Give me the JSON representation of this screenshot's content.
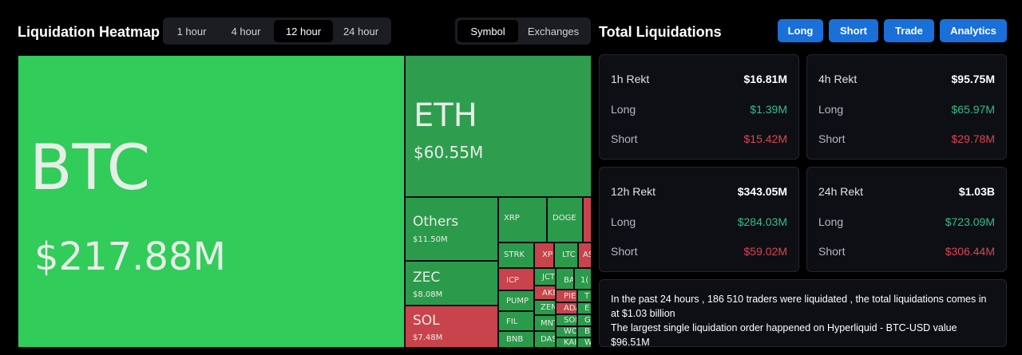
{
  "heatmap": {
    "title": "Liquidation Heatmap",
    "time_options": [
      "1 hour",
      "4 hour",
      "12 hour",
      "24 hour"
    ],
    "time_selected": "12 hour",
    "view_options": [
      "Symbol",
      "Exchanges"
    ],
    "view_selected": "Symbol",
    "tiles": {
      "btc": {
        "symbol": "BTC",
        "value": "$217.88M"
      },
      "eth": {
        "symbol": "ETH",
        "value": "$60.55M"
      },
      "others": {
        "symbol": "Others",
        "value": "$11.50M"
      },
      "zec": {
        "symbol": "ZEC",
        "value": "$8.08M"
      },
      "sol": {
        "symbol": "SOL",
        "value": "$7.48M"
      },
      "xrp": "XRP",
      "doge": "DOGE",
      "strk": "STRK",
      "xpl": "XPL",
      "ltc": "LTC",
      "aster": "AS",
      "icp": "ICP",
      "jct": "JCT",
      "ba": "BA",
      "one": "1(",
      "pump": "PUMP",
      "ake": "AKE",
      "pie": "PIE",
      "t": "T",
      "zen": "ZEN",
      "ada": "ADA",
      "e": "E",
      "fil": "FIL",
      "sol2": "SOL",
      "g": "G",
      "mnt": "MNT",
      "wc": "WC",
      "b": "B",
      "bnb": "BNB",
      "das": "DAS",
      "kai": "KAI",
      "w": "W"
    }
  },
  "total": {
    "title": "Total Liquidations",
    "buttons": {
      "long": "Long",
      "short": "Short",
      "trade": "Trade",
      "analytics": "Analytics"
    },
    "long_label": "Long",
    "short_label": "Short",
    "cards": [
      {
        "label": "1h Rekt",
        "total": "$16.81M",
        "long": "$1.39M",
        "short": "$15.42M"
      },
      {
        "label": "4h Rekt",
        "total": "$95.75M",
        "long": "$65.97M",
        "short": "$29.78M"
      },
      {
        "label": "12h Rekt",
        "total": "$343.05M",
        "long": "$284.03M",
        "short": "$59.02M"
      },
      {
        "label": "24h Rekt",
        "total": "$1.03B",
        "long": "$723.09M",
        "short": "$306.44M"
      }
    ],
    "summary_line1": "In the past 24 hours , 186 510 traders were liquidated , the total liquidations comes in at $1.03 billion",
    "summary_line2": "The largest single liquidation order happened on Hyperliquid - BTC-USD value $96.51M"
  },
  "colors": {
    "green_bright": "#31cc5a",
    "green": "#2f9d4e",
    "red": "#c8434b",
    "accent": "#1a6fd8",
    "long_text": "#2fbf8a",
    "short_text": "#e04452"
  }
}
